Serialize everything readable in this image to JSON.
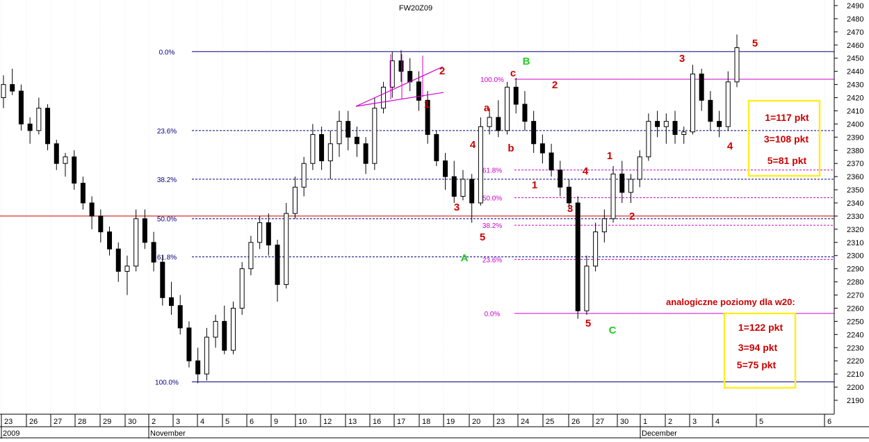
{
  "chart_data": {
    "type": "candlestick",
    "title": "FW20Z09",
    "y_axis": {
      "min": 2180,
      "max": 2495,
      "ticks": [
        2190,
        2200,
        2210,
        2220,
        2230,
        2240,
        2250,
        2260,
        2270,
        2280,
        2290,
        2300,
        2310,
        2320,
        2330,
        2340,
        2350,
        2360,
        2370,
        2380,
        2390,
        2400,
        2410,
        2420,
        2430,
        2440,
        2450,
        2460,
        2470,
        2480,
        2490
      ]
    },
    "x_axis": {
      "days": [
        "23",
        "26",
        "27",
        "28",
        "29",
        "30",
        "2",
        "3",
        "4",
        "5",
        "6",
        "9",
        "10",
        "12",
        "13",
        "16",
        "17",
        "18",
        "19",
        "20",
        "23",
        "24",
        "25",
        "26",
        "27",
        "30",
        "1",
        "2",
        "3",
        "4",
        "5",
        "6"
      ],
      "months": [
        "2009",
        "November",
        "December"
      ]
    },
    "candles": [
      [
        2420,
        2437,
        2412,
        2430
      ],
      [
        2430,
        2442,
        2422,
        2425
      ],
      [
        2425,
        2430,
        2395,
        2400
      ],
      [
        2400,
        2405,
        2385,
        2395
      ],
      [
        2395,
        2420,
        2392,
        2412
      ],
      [
        2412,
        2415,
        2380,
        2385
      ],
      [
        2385,
        2388,
        2365,
        2370
      ],
      [
        2370,
        2378,
        2360,
        2375
      ],
      [
        2375,
        2380,
        2350,
        2355
      ],
      [
        2355,
        2360,
        2335,
        2340
      ],
      [
        2340,
        2345,
        2320,
        2330
      ],
      [
        2330,
        2335,
        2310,
        2318
      ],
      [
        2318,
        2322,
        2300,
        2305
      ],
      [
        2305,
        2310,
        2280,
        2288
      ],
      [
        2288,
        2300,
        2270,
        2292
      ],
      [
        2292,
        2335,
        2288,
        2328
      ],
      [
        2328,
        2335,
        2305,
        2310
      ],
      [
        2310,
        2318,
        2288,
        2295
      ],
      [
        2295,
        2300,
        2262,
        2268
      ],
      [
        2268,
        2280,
        2255,
        2262
      ],
      [
        2262,
        2270,
        2240,
        2245
      ],
      [
        2245,
        2250,
        2215,
        2220
      ],
      [
        2220,
        2230,
        2203,
        2210
      ],
      [
        2210,
        2245,
        2205,
        2238
      ],
      [
        2238,
        2255,
        2230,
        2250
      ],
      [
        2250,
        2262,
        2225,
        2228
      ],
      [
        2228,
        2265,
        2225,
        2260
      ],
      [
        2260,
        2295,
        2255,
        2290
      ],
      [
        2290,
        2315,
        2285,
        2310
      ],
      [
        2310,
        2330,
        2305,
        2325
      ],
      [
        2325,
        2332,
        2300,
        2308
      ],
      [
        2308,
        2312,
        2265,
        2278
      ],
      [
        2278,
        2340,
        2275,
        2332
      ],
      [
        2332,
        2360,
        2328,
        2352
      ],
      [
        2352,
        2375,
        2345,
        2370
      ],
      [
        2370,
        2400,
        2365,
        2392
      ],
      [
        2392,
        2398,
        2365,
        2372
      ],
      [
        2372,
        2395,
        2358,
        2385
      ],
      [
        2385,
        2410,
        2375,
        2402
      ],
      [
        2402,
        2410,
        2380,
        2390
      ],
      [
        2390,
        2398,
        2375,
        2385
      ],
      [
        2385,
        2390,
        2362,
        2370
      ],
      [
        2370,
        2420,
        2365,
        2412
      ],
      [
        2412,
        2432,
        2408,
        2428
      ],
      [
        2428,
        2455,
        2420,
        2448
      ],
      [
        2448,
        2456,
        2432,
        2440
      ],
      [
        2440,
        2450,
        2425,
        2432
      ],
      [
        2432,
        2440,
        2410,
        2418
      ],
      [
        2418,
        2425,
        2385,
        2392
      ],
      [
        2392,
        2395,
        2368,
        2372
      ],
      [
        2372,
        2378,
        2350,
        2360
      ],
      [
        2360,
        2372,
        2340,
        2345
      ],
      [
        2345,
        2365,
        2342,
        2358
      ],
      [
        2358,
        2362,
        2325,
        2340
      ],
      [
        2340,
        2405,
        2338,
        2398
      ],
      [
        2398,
        2412,
        2392,
        2405
      ],
      [
        2405,
        2418,
        2390,
        2395
      ],
      [
        2395,
        2432,
        2392,
        2428
      ],
      [
        2428,
        2435,
        2408,
        2415
      ],
      [
        2415,
        2425,
        2395,
        2402
      ],
      [
        2402,
        2410,
        2378,
        2385
      ],
      [
        2385,
        2392,
        2370,
        2378
      ],
      [
        2378,
        2385,
        2360,
        2365
      ],
      [
        2365,
        2372,
        2345,
        2352
      ],
      [
        2352,
        2358,
        2335,
        2340
      ],
      [
        2340,
        2345,
        2252,
        2258
      ],
      [
        2258,
        2300,
        2255,
        2292
      ],
      [
        2292,
        2325,
        2288,
        2318
      ],
      [
        2318,
        2335,
        2310,
        2328
      ],
      [
        2328,
        2368,
        2325,
        2362
      ],
      [
        2362,
        2372,
        2340,
        2348
      ],
      [
        2348,
        2362,
        2340,
        2358
      ],
      [
        2358,
        2380,
        2352,
        2375
      ],
      [
        2375,
        2408,
        2372,
        2402
      ],
      [
        2402,
        2410,
        2390,
        2398
      ],
      [
        2398,
        2408,
        2385,
        2402
      ],
      [
        2402,
        2410,
        2385,
        2392
      ],
      [
        2392,
        2398,
        2385,
        2394
      ],
      [
        2394,
        2445,
        2392,
        2438
      ],
      [
        2438,
        2442,
        2410,
        2418
      ],
      [
        2418,
        2425,
        2395,
        2402
      ],
      [
        2402,
        2410,
        2390,
        2398
      ],
      [
        2398,
        2440,
        2395,
        2432
      ],
      [
        2432,
        2468,
        2428,
        2458
      ]
    ],
    "horizontal_lines": [
      {
        "label": "0.0%",
        "value": 2455,
        "color": "#000080",
        "style": "solid",
        "label_pos": "left-mid"
      },
      {
        "label": "23.6%",
        "value": 2395,
        "color": "#000080",
        "style": "dashed",
        "label_pos": "left-mid"
      },
      {
        "label": "38.2%",
        "value": 2358,
        "color": "#000080",
        "style": "dashed",
        "label_pos": "left-mid"
      },
      {
        "label": "50.0%",
        "value": 2328,
        "color": "#000080",
        "style": "dashed",
        "label_pos": "left-mid"
      },
      {
        "label": "61.8%",
        "value": 2299,
        "color": "#000080",
        "style": "dashed",
        "label_pos": "left-mid"
      },
      {
        "label": "100.0%",
        "value": 2204,
        "color": "#000080",
        "style": "solid",
        "label_pos": "left-mid"
      },
      {
        "label": "",
        "value": 2330,
        "color": "#cc0000",
        "style": "solid",
        "label_pos": "none"
      },
      {
        "label": "100.0%",
        "value": 2434,
        "color": "#cc00cc",
        "style": "solid",
        "label_pos": "right"
      },
      {
        "label": "61.8%",
        "value": 2365,
        "color": "#cc00cc",
        "style": "dashed",
        "label_pos": "right"
      },
      {
        "label": "50.0%",
        "value": 2344,
        "color": "#cc00cc",
        "style": "dashed",
        "label_pos": "right"
      },
      {
        "label": "38.2%",
        "value": 2323,
        "color": "#cc00cc",
        "style": "dashed",
        "label_pos": "right"
      },
      {
        "label": "23.6%",
        "value": 2297,
        "color": "#cc00cc",
        "style": "dashed",
        "label_pos": "right"
      },
      {
        "label": "0.0%",
        "value": 2256,
        "color": "#cc00cc",
        "style": "solid",
        "label_pos": "right"
      }
    ],
    "wave_labels": [
      {
        "text": "B",
        "color": "#22cc22",
        "day": "23"
      },
      {
        "text": "A",
        "color": "#22cc22",
        "day": "20"
      },
      {
        "text": "C",
        "color": "#22cc22",
        "day": "30"
      },
      {
        "text": "a",
        "color": "#cc0000"
      },
      {
        "text": "b",
        "color": "#cc0000"
      },
      {
        "text": "c",
        "color": "#cc0000"
      },
      {
        "text": "1",
        "color": "#cc0000"
      },
      {
        "text": "2",
        "color": "#cc0000"
      },
      {
        "text": "3",
        "color": "#cc0000"
      },
      {
        "text": "4",
        "color": "#cc0000"
      },
      {
        "text": "5",
        "color": "#cc0000"
      }
    ],
    "annotations": {
      "box1": [
        "1=117 pkt",
        "3=108 pkt",
        "5=81 pkt"
      ],
      "caption": "analogiczne poziomy dla w20:",
      "box2": [
        "1=122 pkt",
        "3=94 pkt",
        "5=75 pkt"
      ]
    }
  }
}
